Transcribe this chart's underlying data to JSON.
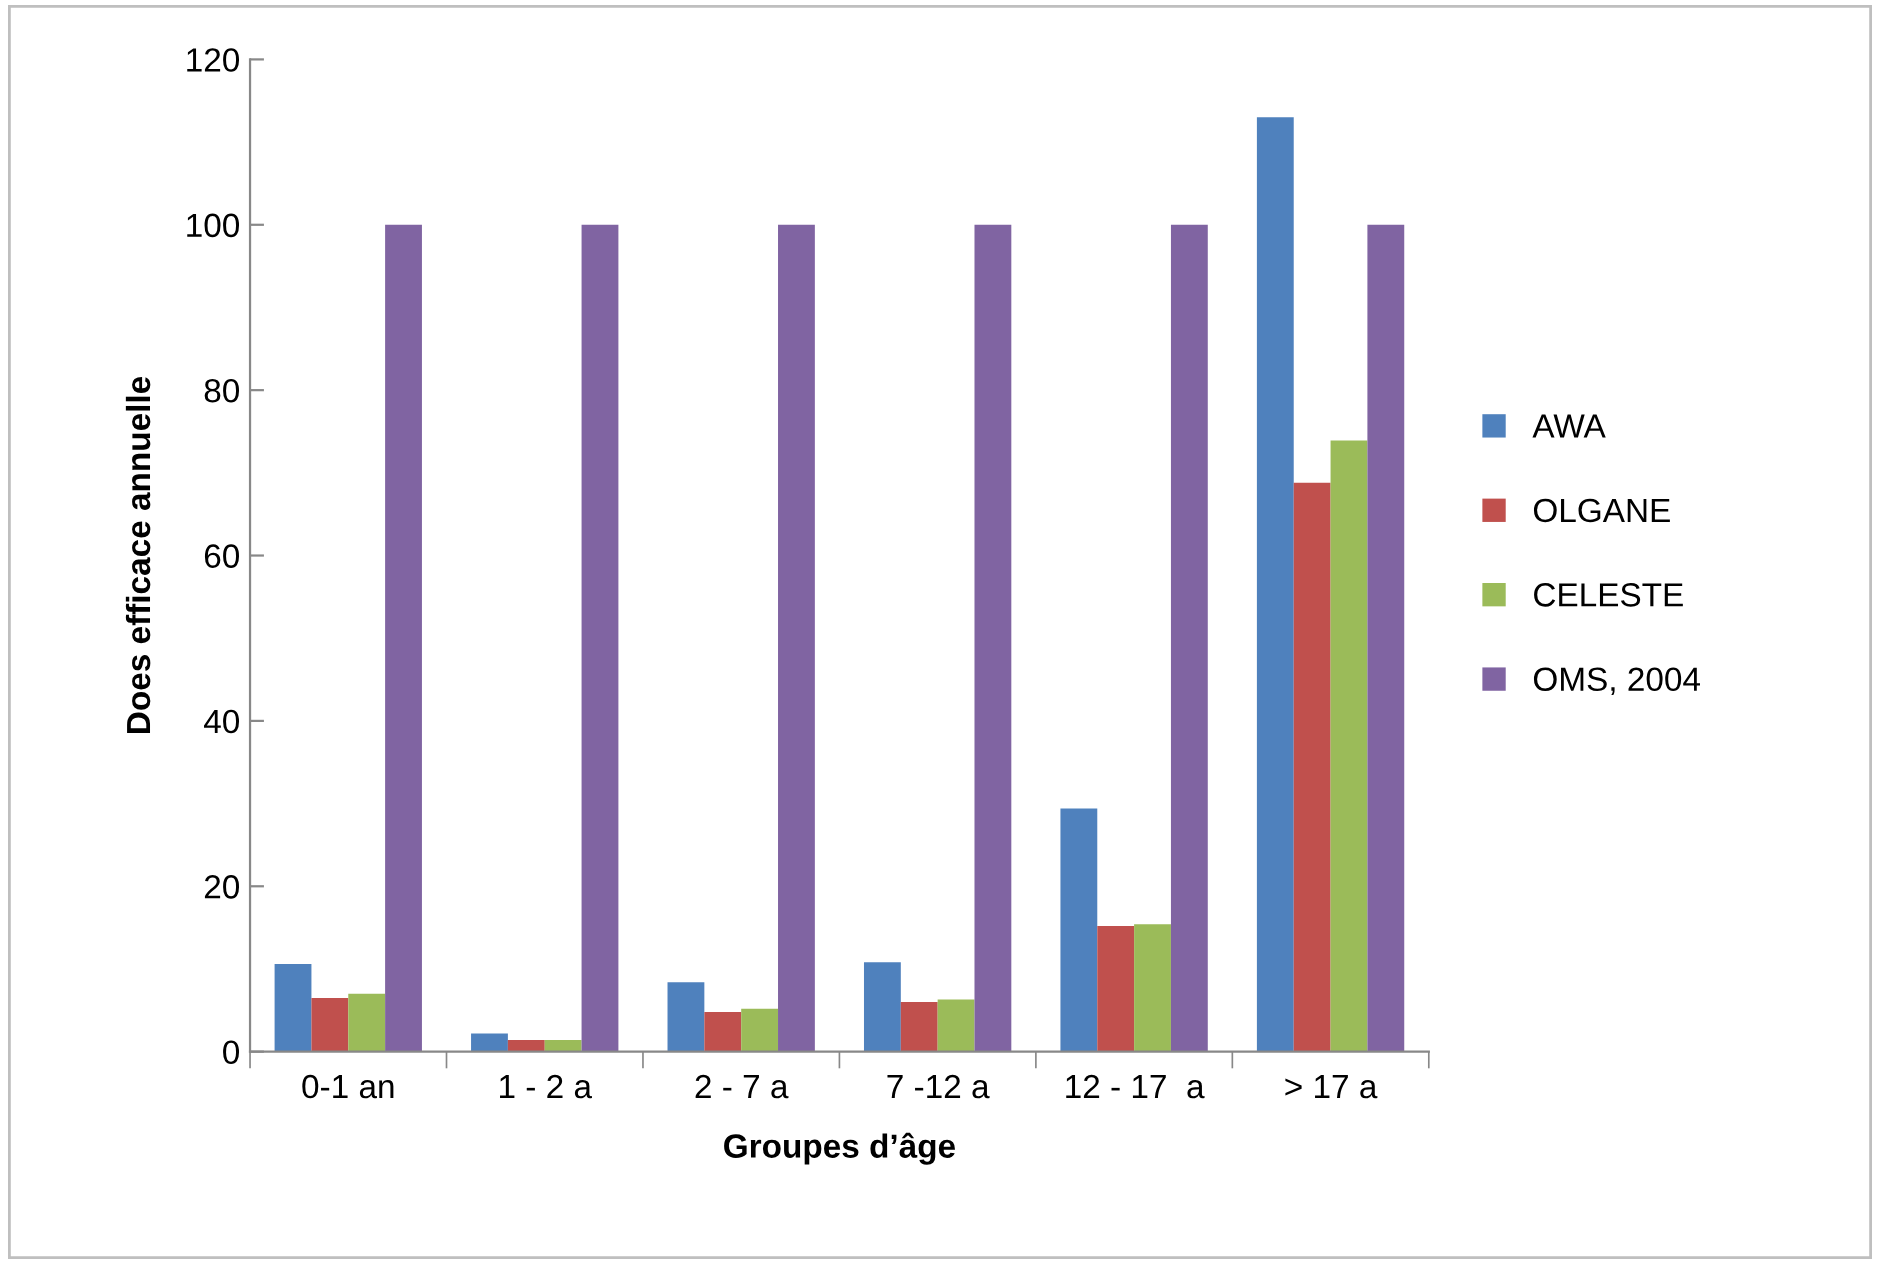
{
  "chart_data": {
    "type": "bar",
    "xlabel": "Groupes d’âge",
    "ylabel": "Does efficace annuelle",
    "categories": [
      "0-1 an",
      "1 - 2 a",
      "2 - 7 a",
      "7 -12 a",
      "12 - 17  a",
      "> 17 a"
    ],
    "series": [
      {
        "name": "AWA",
        "color": "#4f81bd",
        "values": [
          10.6,
          2.2,
          8.4,
          10.8,
          29.4,
          113
        ]
      },
      {
        "name": "OLGANE",
        "color": "#c0504d",
        "values": [
          6.5,
          1.4,
          4.8,
          6.0,
          15.2,
          68.8
        ]
      },
      {
        "name": "CELESTE",
        "color": "#9bbb59",
        "values": [
          7.0,
          1.4,
          5.2,
          6.3,
          15.4,
          73.9
        ]
      },
      {
        "name": "OMS, 2004",
        "color": "#8064a2",
        "values": [
          100,
          100,
          100,
          100,
          100,
          100
        ]
      }
    ],
    "ylim": [
      0,
      120
    ],
    "yticks": [
      0,
      20,
      40,
      60,
      80,
      100,
      120
    ],
    "grid": false,
    "legend": "right"
  }
}
